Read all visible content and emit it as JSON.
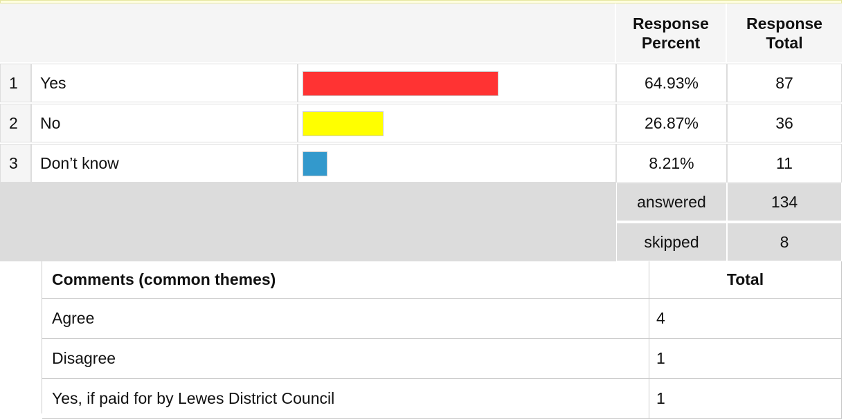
{
  "header": {
    "percent_heading": "Response Percent",
    "total_heading": "Response Total"
  },
  "rows": [
    {
      "index": "1",
      "label": "Yes",
      "percent": 64.93,
      "percent_label": "64.93%",
      "total": "87",
      "color": "#ff3333"
    },
    {
      "index": "2",
      "label": "No",
      "percent": 26.87,
      "percent_label": "26.87%",
      "total": "36",
      "color": "#ffff00"
    },
    {
      "index": "3",
      "label": "Don’t know",
      "percent": 8.21,
      "percent_label": "8.21%",
      "total": "11",
      "color": "#3399cc"
    }
  ],
  "summary": [
    {
      "label": "answered",
      "value": "134"
    },
    {
      "label": "skipped",
      "value": "8"
    }
  ],
  "comments": {
    "headings": [
      "Comments (common themes)",
      "Total"
    ],
    "rows": [
      [
        "Agree",
        "4"
      ],
      [
        "Disagree",
        "1"
      ],
      [
        "Yes, if paid for by Lewes District Council",
        "1"
      ]
    ]
  }
}
